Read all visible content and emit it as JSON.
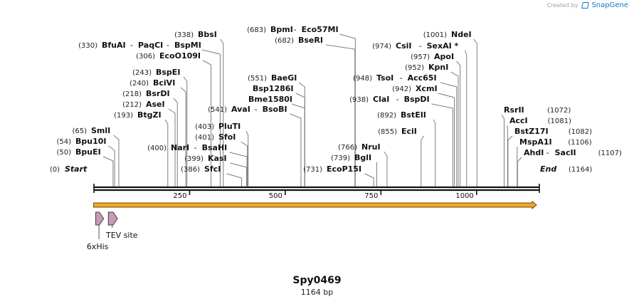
{
  "header": {
    "created_by": "Created by",
    "brand": "SnapGene"
  },
  "sequence": {
    "name": "Spy0469",
    "length_label": "1164 bp",
    "length_bp": 1164,
    "start_label": "Start",
    "start_pos": "(0)",
    "end_label": "End",
    "end_pos": "(1164)"
  },
  "ruler": {
    "ticks": [
      250,
      500,
      750,
      1000
    ]
  },
  "enzymes": [
    {
      "pos": 50,
      "label": "BpuEI",
      "num": "(50)",
      "side": "left"
    },
    {
      "pos": 54,
      "label": "Bpu10I",
      "num": "(54)",
      "side": "left"
    },
    {
      "pos": 65,
      "label": "SmlI",
      "num": "(65)",
      "side": "left"
    },
    {
      "pos": 193,
      "label": "BtgZI",
      "num": "(193)",
      "side": "left"
    },
    {
      "pos": 212,
      "label": "AseI",
      "num": "(212)",
      "side": "left"
    },
    {
      "pos": 218,
      "label": "BsrDI",
      "num": "(218)",
      "side": "left"
    },
    {
      "pos": 240,
      "label": "BciVI",
      "num": "(240)",
      "side": "left"
    },
    {
      "pos": 243,
      "label": "BspEI",
      "num": "(243)",
      "side": "left"
    },
    {
      "pos": 306,
      "label": "EcoO109I",
      "num": "(306)",
      "side": "left"
    },
    {
      "pos": 330,
      "label": "BfuAI - PaqCI - BspMI",
      "num": "(330)",
      "side": "left"
    },
    {
      "pos": 338,
      "label": "BbsI",
      "num": "(338)",
      "side": "left"
    },
    {
      "pos": 386,
      "label": "SfcI",
      "num": "(386)",
      "side": "left"
    },
    {
      "pos": 399,
      "label": "KasI",
      "num": "(399)",
      "side": "left"
    },
    {
      "pos": 400,
      "label": "NarI - BsaHI",
      "num": "(400)",
      "side": "left"
    },
    {
      "pos": 401,
      "label": "SfoI",
      "num": "(401)",
      "side": "left"
    },
    {
      "pos": 403,
      "label": "PluTI",
      "num": "(403)",
      "side": "left"
    },
    {
      "pos": 541,
      "label": "AvaI - BsoBI",
      "num": "(541)",
      "side": "left"
    },
    {
      "pos": 551,
      "label": "BaeGI",
      "num": "(551)",
      "side": "left"
    },
    {
      "pos": 551,
      "label": "Bsp1286I",
      "num": "",
      "side": "left"
    },
    {
      "pos": 551,
      "label": "Bme1580I",
      "num": "",
      "side": "left"
    },
    {
      "pos": 683,
      "label": "BpmI - Eco57MI",
      "num": "(683)",
      "side": "left"
    },
    {
      "pos": 682,
      "label": "BseRI",
      "num": "(682)",
      "side": "left"
    },
    {
      "pos": 731,
      "label": "EcoP15I",
      "num": "(731)",
      "side": "left"
    },
    {
      "pos": 739,
      "label": "BglI",
      "num": "(739)",
      "side": "left"
    },
    {
      "pos": 766,
      "label": "NruI",
      "num": "(766)",
      "side": "left"
    },
    {
      "pos": 855,
      "label": "EciI",
      "num": "(855)",
      "side": "left"
    },
    {
      "pos": 892,
      "label": "BstEII",
      "num": "(892)",
      "side": "left"
    },
    {
      "pos": 938,
      "label": "ClaI - BspDI",
      "num": "(938)",
      "side": "left"
    },
    {
      "pos": 942,
      "label": "XcmI",
      "num": "(942)",
      "side": "left"
    },
    {
      "pos": 948,
      "label": "TsoI - Acc65I",
      "num": "(948)",
      "side": "left"
    },
    {
      "pos": 952,
      "label": "KpnI",
      "num": "(952)",
      "side": "left"
    },
    {
      "pos": 957,
      "label": "ApoI",
      "num": "(957)",
      "side": "left"
    },
    {
      "pos": 974,
      "label": "CsiI - SexAI *",
      "num": "(974)",
      "side": "left"
    },
    {
      "pos": 1001,
      "label": "NdeI",
      "num": "(1001)",
      "side": "left"
    },
    {
      "pos": 1072,
      "label": "RsrII",
      "num": "(1072)",
      "side": "right"
    },
    {
      "pos": 1081,
      "label": "AccI",
      "num": "(1081)",
      "side": "right"
    },
    {
      "pos": 1082,
      "label": "BstZ17I",
      "num": "(1082)",
      "side": "right"
    },
    {
      "pos": 1106,
      "label": "MspA1I",
      "num": "(1106)",
      "side": "right"
    },
    {
      "pos": 1107,
      "label": "AhdI - SacII",
      "num": "(1107)",
      "side": "right"
    }
  ],
  "features": [
    {
      "name": "6xHis",
      "start": 1,
      "end": 18,
      "color": "#c79bb4"
    },
    {
      "name": "TEV site",
      "start": 34,
      "end": 54,
      "color": "#c79bb4"
    }
  ],
  "orf": {
    "start": 1,
    "end": 1164,
    "color": "#f5a623",
    "outline": "#6b4a1a"
  },
  "colors": {
    "backbone": "#111111",
    "cut_line": "#7d7d7d",
    "text": "#111111",
    "number": "#222222"
  }
}
